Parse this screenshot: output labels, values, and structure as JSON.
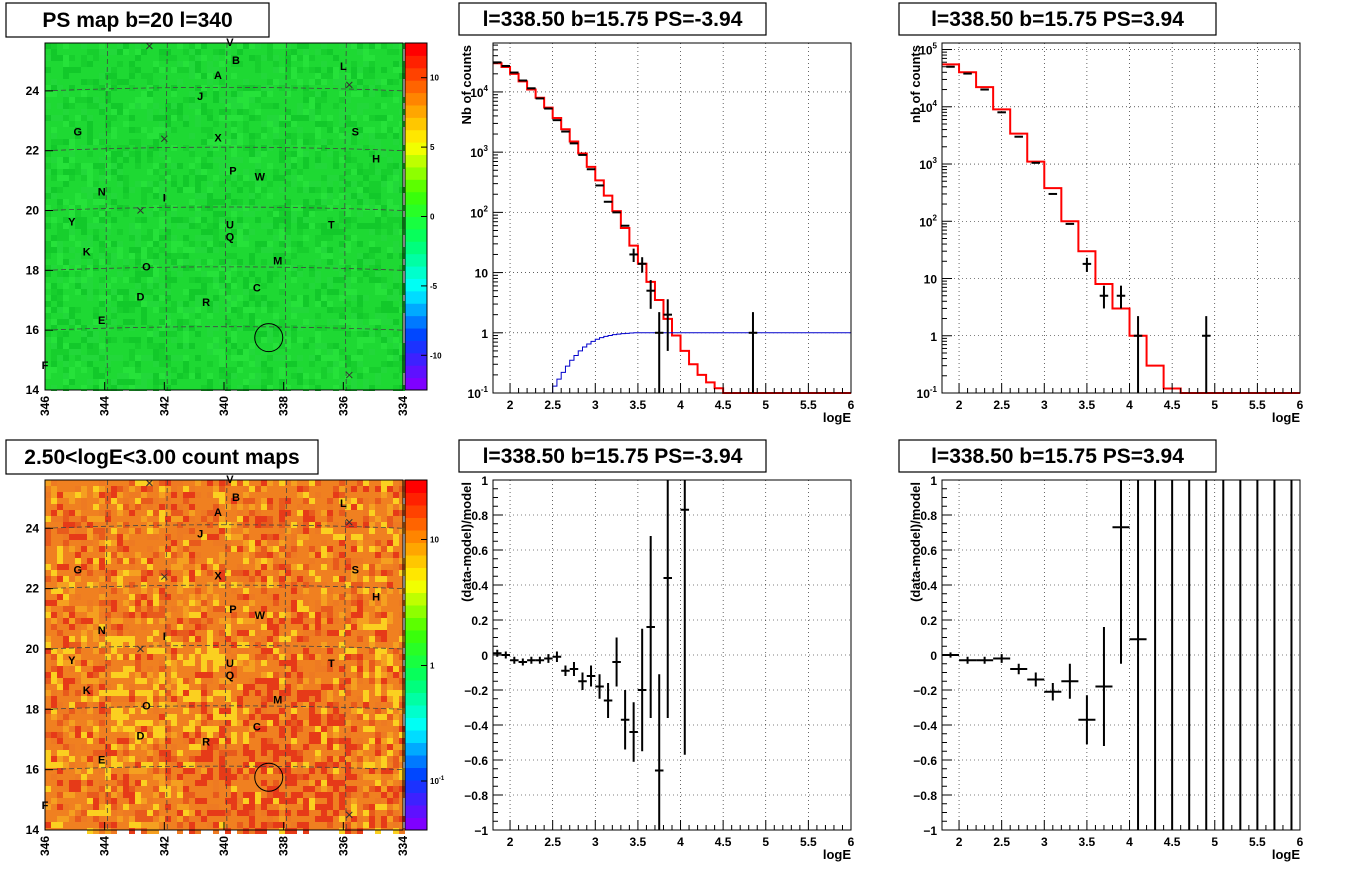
{
  "chart_data": [
    {
      "type": "heatmap",
      "title": "PS map b=20 l=340",
      "x_ticks": [
        "346",
        "344",
        "342",
        "340",
        "338",
        "336",
        "334"
      ],
      "y_ticks": [
        "14",
        "16",
        "18",
        "20",
        "22",
        "24"
      ],
      "xlim": [
        346,
        334
      ],
      "ylim": [
        14,
        25.6
      ],
      "colorbar": {
        "ticks": [
          "10",
          "5",
          "0",
          "-5",
          "-10"
        ],
        "range": [
          -12.5,
          12.5
        ],
        "colors": [
          "#7f00ff",
          "#0040ff",
          "#00ffff",
          "#00ff66",
          "#40ff00",
          "#ffff00",
          "#ff8000",
          "#ff0000"
        ]
      },
      "map_fill": "#1ed933",
      "sources": [
        {
          "label": "V",
          "l": 339.8,
          "b": 25.5
        },
        {
          "label": "B",
          "l": 339.6,
          "b": 24.9
        },
        {
          "label": "L",
          "l": 336.0,
          "b": 24.7
        },
        {
          "label": "A",
          "l": 340.2,
          "b": 24.4
        },
        {
          "label": "J",
          "l": 340.8,
          "b": 23.7
        },
        {
          "label": "G",
          "l": 344.9,
          "b": 22.5
        },
        {
          "label": "X",
          "l": 340.2,
          "b": 22.3
        },
        {
          "label": "S",
          "l": 335.6,
          "b": 22.5
        },
        {
          "label": "H",
          "l": 334.9,
          "b": 21.6
        },
        {
          "label": "P",
          "l": 339.7,
          "b": 21.2
        },
        {
          "label": "W",
          "l": 338.8,
          "b": 21.0
        },
        {
          "label": "N",
          "l": 344.1,
          "b": 20.5
        },
        {
          "label": "I",
          "l": 342.0,
          "b": 20.3
        },
        {
          "label": "Y",
          "l": 345.1,
          "b": 19.5
        },
        {
          "label": "U",
          "l": 339.8,
          "b": 19.4
        },
        {
          "label": "T",
          "l": 336.4,
          "b": 19.4
        },
        {
          "label": "Q",
          "l": 339.8,
          "b": 19.0
        },
        {
          "label": "K",
          "l": 344.6,
          "b": 18.5
        },
        {
          "label": "M",
          "l": 338.2,
          "b": 18.2
        },
        {
          "label": "O",
          "l": 342.6,
          "b": 18.0
        },
        {
          "label": "C",
          "l": 338.9,
          "b": 17.3
        },
        {
          "label": "D",
          "l": 342.8,
          "b": 17.0
        },
        {
          "label": "R",
          "l": 340.6,
          "b": 16.8
        },
        {
          "label": "E",
          "l": 344.1,
          "b": 16.2
        },
        {
          "label": "F",
          "l": 346.0,
          "b": 14.7
        }
      ],
      "crosses": [
        {
          "l": 342.5,
          "b": 25.5
        },
        {
          "l": 335.8,
          "b": 24.2
        },
        {
          "l": 342.0,
          "b": 22.4
        },
        {
          "l": 342.8,
          "b": 20.0
        },
        {
          "l": 335.8,
          "b": 14.5
        }
      ],
      "circle": {
        "l": 338.5,
        "b": 15.75
      }
    },
    {
      "type": "line",
      "title": "l=338.50 b=15.75 PS=-3.94",
      "xlabel": "logE",
      "ylabel": "Nb of counts",
      "xlim": [
        1.8,
        6
      ],
      "ylim": [
        0.1,
        65000
      ],
      "y_scale": "log",
      "x_ticks": [
        "2",
        "2.5",
        "3",
        "3.5",
        "4",
        "4.5",
        "5",
        "5.5",
        "6"
      ],
      "y_ticks": [
        "10^-1",
        "1",
        "10",
        "10^2",
        "10^3",
        "10^4"
      ],
      "series": [
        {
          "color": "#ff0000",
          "style": "step",
          "bin_width": 0.1,
          "x": [
            1.8,
            1.9,
            2.0,
            2.1,
            2.2,
            2.3,
            2.4,
            2.5,
            2.6,
            2.7,
            2.8,
            2.9,
            3.0,
            3.1,
            3.2,
            3.3,
            3.4,
            3.5,
            3.6,
            3.7,
            3.8,
            3.9,
            4.0,
            4.1,
            4.2,
            4.3,
            4.4,
            4.5,
            4.6,
            4.7,
            4.8,
            4.9,
            5.0,
            5.1,
            5.2,
            5.3,
            5.4,
            5.5,
            5.6,
            5.7,
            5.8,
            5.9
          ],
          "values": [
            30000,
            26000,
            20000,
            15000,
            11000,
            8000,
            5500,
            3700,
            2400,
            1500,
            950,
            570,
            340,
            190,
            105,
            55,
            28,
            14,
            7,
            3.5,
            1.7,
            0.9,
            0.5,
            0.3,
            0.2,
            0.15,
            0.12,
            0.1,
            0.1,
            0.1,
            0.1,
            0.1,
            0.1,
            0.1,
            0.1,
            0.1,
            0.1,
            0.1,
            0.1,
            0.1,
            0.1,
            0.1
          ]
        },
        {
          "color": "#0000cc",
          "style": "step",
          "bin_width": 0.05,
          "x": [
            2.45,
            2.5,
            2.55,
            2.6,
            2.65,
            2.7,
            2.75,
            2.8,
            2.85,
            2.9,
            2.95,
            3.0,
            3.05,
            3.1,
            3.15,
            3.2,
            3.25,
            3.3,
            3.35,
            3.4,
            3.45,
            3.5,
            3.55,
            3.6,
            3.65,
            3.7,
            3.75,
            3.8,
            3.85,
            3.9,
            3.95,
            4.0,
            4.05,
            4.1,
            4.15,
            4.2,
            4.25,
            4.3,
            4.35,
            4.4,
            4.45,
            4.5,
            4.55,
            4.6,
            4.65,
            4.7,
            4.75,
            4.8,
            4.85,
            4.9,
            4.95,
            5.0,
            5.05,
            5.1,
            5.15,
            5.2,
            5.25,
            5.3,
            5.35,
            5.4,
            5.45,
            5.5,
            5.55,
            5.6,
            5.65,
            5.7,
            5.75,
            5.8,
            5.85,
            5.9,
            5.95
          ],
          "values": [
            0.1,
            0.13,
            0.17,
            0.22,
            0.28,
            0.35,
            0.42,
            0.5,
            0.58,
            0.65,
            0.72,
            0.78,
            0.83,
            0.87,
            0.9,
            0.93,
            0.95,
            0.97,
            0.98,
            0.99,
            1.0,
            1.0,
            1.0,
            1.0,
            1.0,
            1.0,
            1.0,
            1.0,
            1.0,
            1.0,
            1.0,
            1.0,
            1.0,
            1.0,
            1.0,
            1.0,
            1.0,
            1.0,
            1.0,
            1.0,
            1.0,
            1.0,
            1.0,
            1.0,
            1.0,
            1.0,
            1.0,
            1.0,
            1.0,
            1.0,
            1.0,
            1.0,
            1.0,
            1.0,
            1.0,
            1.0,
            1.0,
            1.0,
            1.0,
            1.0,
            1.0,
            1.0,
            1.0,
            1.0,
            1.0,
            1.0,
            1.0,
            1.0,
            1.0,
            1.0,
            1.0
          ]
        },
        {
          "color": "#000000",
          "style": "points",
          "x": [
            1.85,
            1.95,
            2.05,
            2.15,
            2.25,
            2.35,
            2.45,
            2.55,
            2.65,
            2.75,
            2.85,
            2.95,
            3.05,
            3.15,
            3.25,
            3.35,
            3.45,
            3.55,
            3.65,
            3.75,
            3.85,
            4.85
          ],
          "values": [
            31000,
            27000,
            21000,
            15500,
            11500,
            7800,
            5300,
            3400,
            2200,
            1400,
            900,
            520,
            280,
            150,
            100,
            60,
            20,
            14,
            5,
            1,
            2,
            1
          ],
          "err_lo": [
            0,
            0,
            0,
            0,
            0,
            0,
            0,
            0,
            0,
            0,
            0,
            0,
            0,
            0,
            0,
            0,
            5,
            4,
            2.5,
            0.9,
            1.5,
            0.9
          ],
          "err_hi": [
            0,
            0,
            0,
            0,
            0,
            0,
            0,
            0,
            0,
            0,
            0,
            0,
            0,
            0,
            0,
            0,
            5,
            4,
            2.5,
            1.2,
            1.6,
            1.2
          ]
        }
      ]
    },
    {
      "type": "line",
      "title": "l=338.50 b=15.75 PS=3.94",
      "xlabel": "logE",
      "ylabel": "nb of counts",
      "xlim": [
        1.8,
        6
      ],
      "ylim": [
        0.1,
        130000
      ],
      "y_scale": "log",
      "x_ticks": [
        "2",
        "2.5",
        "3",
        "3.5",
        "4",
        "4.5",
        "5",
        "5.5",
        "6"
      ],
      "y_ticks": [
        "10^-1",
        "1",
        "10",
        "10^2",
        "10^3",
        "10^4",
        "10^5"
      ],
      "series": [
        {
          "color": "#ff0000",
          "style": "step",
          "bin_width": 0.2,
          "x": [
            1.8,
            2.0,
            2.2,
            2.4,
            2.6,
            2.8,
            3.0,
            3.2,
            3.4,
            3.6,
            3.8,
            4.0,
            4.2,
            4.4,
            4.6,
            4.8,
            5.0,
            5.2,
            5.4,
            5.6,
            5.8
          ],
          "values": [
            55000,
            40000,
            22000,
            9000,
            3400,
            1100,
            380,
            100,
            30,
            8,
            3,
            1,
            0.3,
            0.12,
            0.1,
            0.1,
            0.1,
            0.1,
            0.1,
            0.1,
            0.1
          ]
        },
        {
          "color": "#000000",
          "style": "points",
          "x": [
            1.9,
            2.1,
            2.3,
            2.5,
            2.7,
            2.9,
            3.1,
            3.3,
            3.5,
            3.7,
            3.9,
            4.1,
            4.9
          ],
          "values": [
            50000,
            38000,
            20000,
            8000,
            3000,
            1050,
            300,
            90,
            18,
            5,
            5,
            1,
            1
          ],
          "err_lo": [
            0,
            0,
            0,
            0,
            0,
            0,
            0,
            0,
            5,
            2,
            2,
            0.9,
            0.9
          ],
          "err_hi": [
            0,
            0,
            0,
            0,
            0,
            0,
            0,
            0,
            5,
            2.5,
            2.5,
            1.2,
            1.2
          ]
        }
      ]
    },
    {
      "type": "heatmap",
      "title": "2.50<logE<3.00 count maps",
      "x_ticks": [
        "346",
        "344",
        "342",
        "340",
        "338",
        "336",
        "334"
      ],
      "y_ticks": [
        "14",
        "16",
        "18",
        "20",
        "22",
        "24"
      ],
      "xlim": [
        346,
        334
      ],
      "ylim": [
        14,
        25.6
      ],
      "colorbar": {
        "ticks": [
          "10",
          "1",
          "10^-1"
        ],
        "log": true,
        "colors": [
          "#7f00ff",
          "#0040ff",
          "#00ffff",
          "#00ff66",
          "#40ff00",
          "#ffff00",
          "#ff8000",
          "#ff0000"
        ]
      },
      "map_fill": "#f08020",
      "sources": "same",
      "crosses": "same",
      "circle": {
        "l": 338.5,
        "b": 15.75
      }
    },
    {
      "type": "scatter",
      "title": "l=338.50 b=15.75 PS=-3.94",
      "xlabel": "logE",
      "ylabel": "(data-model)/model",
      "xlim": [
        1.8,
        6
      ],
      "ylim": [
        -1,
        1
      ],
      "x_ticks": [
        "2",
        "2.5",
        "3",
        "3.5",
        "4",
        "4.5",
        "5",
        "5.5",
        "6"
      ],
      "y_ticks": [
        "−1",
        "−0.8",
        "−0.6",
        "−0.4",
        "−0.2",
        "0",
        "0.2",
        "0.4",
        "0.6",
        "0.8",
        "1"
      ],
      "series": [
        {
          "color": "#000000",
          "style": "points",
          "bin_width": 0.1,
          "x": [
            1.85,
            1.95,
            2.05,
            2.15,
            2.25,
            2.35,
            2.45,
            2.55,
            2.65,
            2.75,
            2.85,
            2.95,
            3.05,
            3.15,
            3.25,
            3.35,
            3.45,
            3.55,
            3.65,
            3.75,
            3.85,
            4.05
          ],
          "values": [
            0.01,
            0.0,
            -0.03,
            -0.04,
            -0.03,
            -0.03,
            -0.02,
            -0.01,
            -0.09,
            -0.08,
            -0.15,
            -0.12,
            -0.18,
            -0.26,
            -0.04,
            -0.37,
            -0.44,
            -0.2,
            0.16,
            -0.66,
            0.44,
            0.83
          ],
          "err": [
            0.02,
            0.02,
            0.02,
            0.02,
            0.02,
            0.02,
            0.025,
            0.03,
            0.03,
            0.04,
            0.05,
            0.06,
            0.07,
            0.1,
            0.14,
            0.17,
            0.17,
            0.35,
            0.52,
            0.55,
            0.8,
            1.4
          ]
        }
      ]
    },
    {
      "type": "scatter",
      "title": "l=338.50 b=15.75 PS=3.94",
      "xlabel": "logE",
      "ylabel": "(data-model)/model",
      "xlim": [
        1.8,
        6
      ],
      "ylim": [
        -1,
        1
      ],
      "x_ticks": [
        "2",
        "2.5",
        "3",
        "3.5",
        "4",
        "4.5",
        "5",
        "5.5",
        "6"
      ],
      "y_ticks": [
        "−1",
        "−0.8",
        "−0.6",
        "−0.4",
        "−0.2",
        "0",
        "0.2",
        "0.4",
        "0.6",
        "0.8",
        "1"
      ],
      "series": [
        {
          "color": "#000000",
          "style": "points",
          "bin_width": 0.2,
          "x": [
            1.9,
            2.1,
            2.3,
            2.5,
            2.7,
            2.9,
            3.1,
            3.3,
            3.5,
            3.7,
            3.9,
            4.1,
            4.3,
            4.5,
            4.7,
            4.9,
            5.1,
            5.3,
            5.5,
            5.7,
            5.9
          ],
          "values": [
            0.0,
            -0.03,
            -0.03,
            -0.02,
            -0.08,
            -0.14,
            -0.21,
            -0.15,
            -0.37,
            -0.18,
            0.73,
            0.09,
            0,
            0,
            0,
            0,
            0,
            0,
            0,
            0,
            0
          ],
          "err": [
            0.015,
            0.02,
            0.02,
            0.025,
            0.03,
            0.04,
            0.05,
            0.1,
            0.14,
            0.34,
            0.78,
            2,
            2,
            2,
            2,
            2,
            2,
            2,
            2,
            2,
            2
          ],
          "marker": [
            true,
            true,
            true,
            true,
            true,
            true,
            true,
            true,
            true,
            true,
            true,
            true,
            false,
            false,
            false,
            false,
            false,
            false,
            false,
            false,
            false
          ]
        }
      ]
    }
  ]
}
